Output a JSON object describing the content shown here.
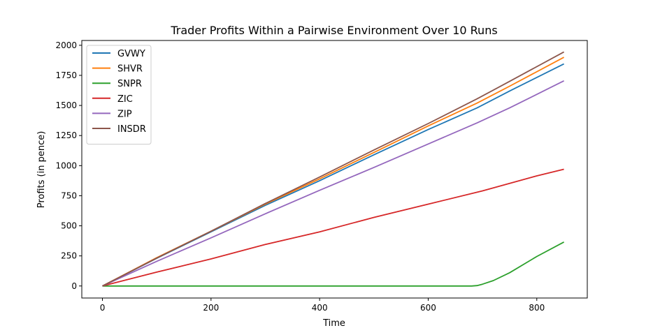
{
  "chart_data": {
    "type": "line",
    "title": "Trader Profits Within a Pairwise Environment Over 10 Runs",
    "xlabel": "Time",
    "ylabel": "Profits (in pence)",
    "xlim": [
      -38,
      893
    ],
    "ylim": [
      -100,
      2040
    ],
    "xticks": [
      0,
      200,
      400,
      600,
      800
    ],
    "yticks": [
      0,
      250,
      500,
      750,
      1000,
      1250,
      1500,
      1750,
      2000
    ],
    "grid": false,
    "legend_position": "top-left",
    "series": [
      {
        "name": "GVWY",
        "color": "#1f77b4",
        "x": [
          0,
          100,
          200,
          300,
          400,
          500,
          600,
          690,
          750,
          850
        ],
        "y": [
          0,
          230,
          450,
          670,
          875,
          1090,
          1300,
          1480,
          1620,
          1845
        ]
      },
      {
        "name": "SHVR",
        "color": "#ff7f0e",
        "x": [
          0,
          100,
          200,
          300,
          400,
          500,
          600,
          690,
          750,
          850
        ],
        "y": [
          0,
          235,
          455,
          680,
          890,
          1110,
          1330,
          1520,
          1660,
          1900
        ]
      },
      {
        "name": "SNPR",
        "color": "#2ca02c",
        "x": [
          0,
          100,
          200,
          300,
          400,
          500,
          600,
          680,
          690,
          700,
          720,
          750,
          800,
          850
        ],
        "y": [
          0,
          0,
          0,
          0,
          0,
          0,
          0,
          0,
          3,
          15,
          45,
          110,
          245,
          365
        ]
      },
      {
        "name": "ZIC",
        "color": "#d62728",
        "x": [
          0,
          100,
          200,
          300,
          400,
          500,
          600,
          700,
          800,
          850
        ],
        "y": [
          0,
          115,
          225,
          345,
          450,
          570,
          680,
          790,
          915,
          970
        ]
      },
      {
        "name": "ZIP",
        "color": "#9467bd",
        "x": [
          0,
          100,
          200,
          300,
          400,
          500,
          600,
          690,
          750,
          850
        ],
        "y": [
          0,
          205,
          400,
          600,
          795,
          985,
          1180,
          1355,
          1480,
          1705
        ]
      },
      {
        "name": "INSDR",
        "color": "#8c564b",
        "x": [
          0,
          100,
          200,
          300,
          400,
          500,
          600,
          690,
          750,
          850
        ],
        "y": [
          0,
          232,
          455,
          685,
          905,
          1130,
          1350,
          1555,
          1700,
          1945
        ]
      }
    ]
  }
}
